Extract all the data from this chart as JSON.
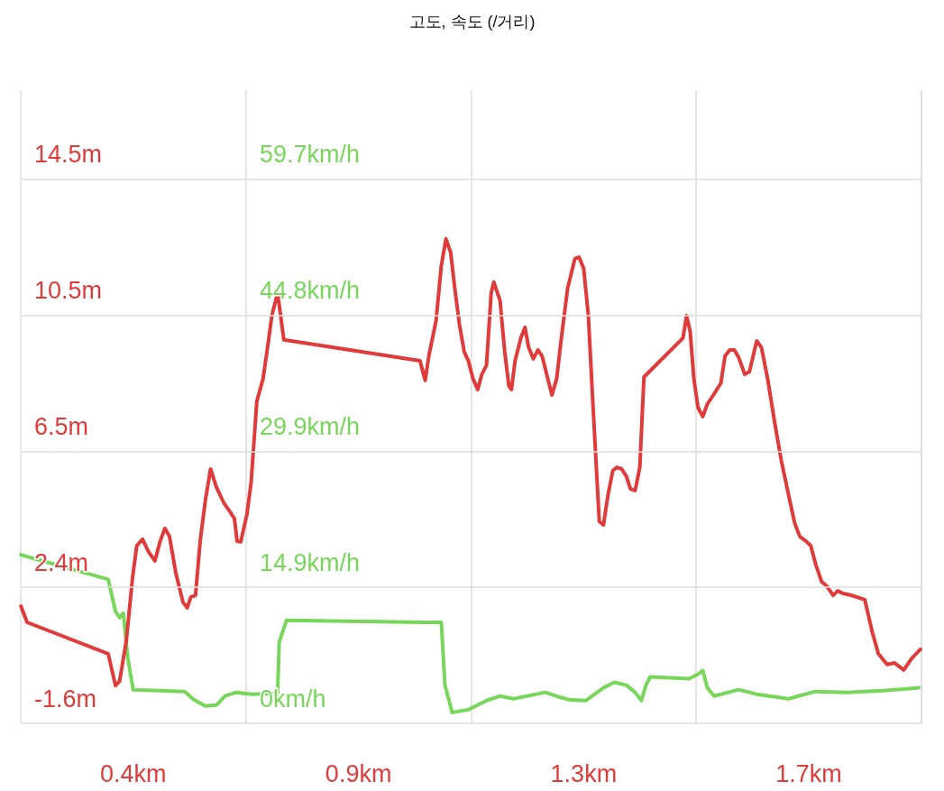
{
  "chart_data": {
    "type": "line",
    "title": "고도, 속도 (/거리)",
    "xlim": [
      0.2167,
      1.95
    ],
    "xticks": [
      {
        "value": 0.4333,
        "label": "0.4km"
      },
      {
        "value": 0.65,
        "label": null
      },
      {
        "value": 0.8667,
        "label": "0.9km"
      },
      {
        "value": 1.0833,
        "label": null
      },
      {
        "value": 1.3,
        "label": "1.3km"
      },
      {
        "value": 1.5167,
        "label": null
      },
      {
        "value": 1.7333,
        "label": "1.7km"
      }
    ],
    "ylim": [
      -1.6,
      17.14
    ],
    "yticks": [
      {
        "value": -1.6,
        "label": "-1.6m"
      },
      {
        "value": 2.425,
        "label": "2.4m"
      },
      {
        "value": 6.45,
        "label": "6.5m"
      },
      {
        "value": 10.475,
        "label": "10.5m"
      },
      {
        "value": 14.5,
        "label": "14.5m"
      }
    ],
    "y2lim": [
      0,
      69.5
    ],
    "y2ticks": [
      {
        "value": 0,
        "label": "0km/h"
      },
      {
        "value": 14.925,
        "label": "14.9km/h"
      },
      {
        "value": 29.85,
        "label": "29.9km/h"
      },
      {
        "value": 44.775,
        "label": "44.8km/h"
      },
      {
        "value": 59.7,
        "label": "59.7km/h"
      }
    ],
    "grid": true,
    "marker": "none",
    "line_style": "solid",
    "series": [
      {
        "color": "#e03a3a",
        "x": [
          0.217,
          0.229,
          0.385,
          0.399,
          0.407,
          0.42,
          0.432,
          0.44,
          0.451,
          0.463,
          0.475,
          0.485,
          0.494,
          0.503,
          0.515,
          0.529,
          0.537,
          0.544,
          0.553,
          0.562,
          0.572,
          0.582,
          0.593,
          0.607,
          0.619,
          0.628,
          0.633,
          0.64,
          0.652,
          0.66,
          0.671,
          0.683,
          0.693,
          0.7,
          0.711,
          0.723,
          0.985,
          0.995,
          1.002,
          1.016,
          1.026,
          1.035,
          1.044,
          1.052,
          1.061,
          1.07,
          1.078,
          1.087,
          1.096,
          1.104,
          1.113,
          1.122,
          1.127,
          1.139,
          1.148,
          1.156,
          1.161,
          1.168,
          1.179,
          1.187,
          1.194,
          1.203,
          1.212,
          1.22,
          1.231,
          1.239,
          1.248,
          1.257,
          1.269,
          1.283,
          1.291,
          1.3,
          1.309,
          1.317,
          1.33,
          1.338,
          1.347,
          1.356,
          1.364,
          1.373,
          1.382,
          1.39,
          1.399,
          1.408,
          1.416,
          1.491,
          1.498,
          1.505,
          1.512,
          1.52,
          1.529,
          1.538,
          1.551,
          1.564,
          1.572,
          1.581,
          1.59,
          1.598,
          1.61,
          1.619,
          1.633,
          1.642,
          1.654,
          1.668,
          1.68,
          1.694,
          1.706,
          1.716,
          1.728,
          1.737,
          1.746,
          1.758,
          1.768,
          1.78,
          1.789,
          1.798,
          1.815,
          1.841,
          1.855,
          1.867,
          1.884,
          1.898,
          1.916,
          1.931,
          1.948
        ],
        "values": [
          1.87,
          1.39,
          0.46,
          -0.48,
          -0.35,
          0.86,
          2.73,
          3.66,
          3.85,
          3.47,
          3.21,
          3.79,
          4.17,
          3.93,
          2.86,
          1.98,
          1.82,
          2.14,
          2.19,
          3.79,
          5.0,
          5.93,
          5.4,
          4.94,
          4.67,
          4.46,
          3.79,
          3.77,
          4.59,
          5.53,
          7.93,
          8.6,
          9.67,
          10.47,
          11.14,
          9.75,
          9.13,
          8.55,
          9.27,
          10.33,
          11.94,
          12.74,
          12.34,
          11.27,
          10.2,
          9.4,
          9.13,
          8.6,
          8.28,
          8.73,
          9.0,
          11.14,
          11.46,
          10.92,
          9.4,
          8.39,
          8.28,
          9.13,
          9.8,
          10.12,
          9.53,
          9.19,
          9.45,
          9.27,
          8.6,
          8.12,
          8.6,
          9.8,
          11.27,
          12.15,
          12.2,
          11.86,
          10.47,
          8.07,
          4.38,
          4.27,
          5.18,
          5.88,
          5.98,
          5.93,
          5.72,
          5.34,
          5.29,
          5.98,
          8.65,
          9.8,
          10.47,
          9.99,
          8.6,
          7.75,
          7.48,
          7.85,
          8.15,
          8.47,
          9.27,
          9.45,
          9.45,
          9.24,
          8.73,
          8.81,
          9.72,
          9.53,
          8.6,
          7.26,
          6.2,
          5.18,
          4.33,
          3.93,
          3.79,
          3.66,
          3.13,
          2.59,
          2.46,
          2.19,
          2.32,
          2.25,
          2.19,
          2.06,
          1.12,
          0.46,
          0.14,
          0.19,
          -0.02,
          0.32,
          0.59
        ]
      },
      {
        "color": "#78d65a",
        "axis": "y2",
        "x": [
          0.217,
          0.385,
          0.399,
          0.407,
          0.414,
          0.423,
          0.433,
          0.532,
          0.55,
          0.572,
          0.593,
          0.61,
          0.631,
          0.662,
          0.711,
          0.714,
          0.728,
          0.992,
          1.026,
          1.033,
          1.047,
          1.078,
          1.113,
          1.139,
          1.165,
          1.191,
          1.226,
          1.252,
          1.272,
          1.304,
          1.338,
          1.359,
          1.382,
          1.399,
          1.411,
          1.42,
          1.428,
          1.503,
          1.52,
          1.529,
          1.538,
          1.551,
          1.598,
          1.633,
          1.694,
          1.746,
          1.806,
          1.876,
          1.945
        ],
        "values": [
          18.5,
          15.8,
          12.3,
          11.6,
          12.1,
          7.1,
          3.7,
          3.5,
          2.6,
          1.9,
          2.0,
          3.0,
          3.4,
          3.2,
          3.3,
          8.9,
          11.3,
          11.1,
          11.1,
          4.2,
          1.2,
          1.5,
          2.5,
          3.0,
          2.7,
          3.0,
          3.4,
          2.9,
          2.6,
          2.5,
          3.9,
          4.5,
          4.2,
          3.4,
          2.5,
          4.2,
          5.1,
          4.9,
          5.4,
          5.8,
          3.9,
          3.0,
          3.7,
          3.2,
          2.7,
          3.5,
          3.4,
          3.6,
          3.9
        ]
      }
    ]
  }
}
